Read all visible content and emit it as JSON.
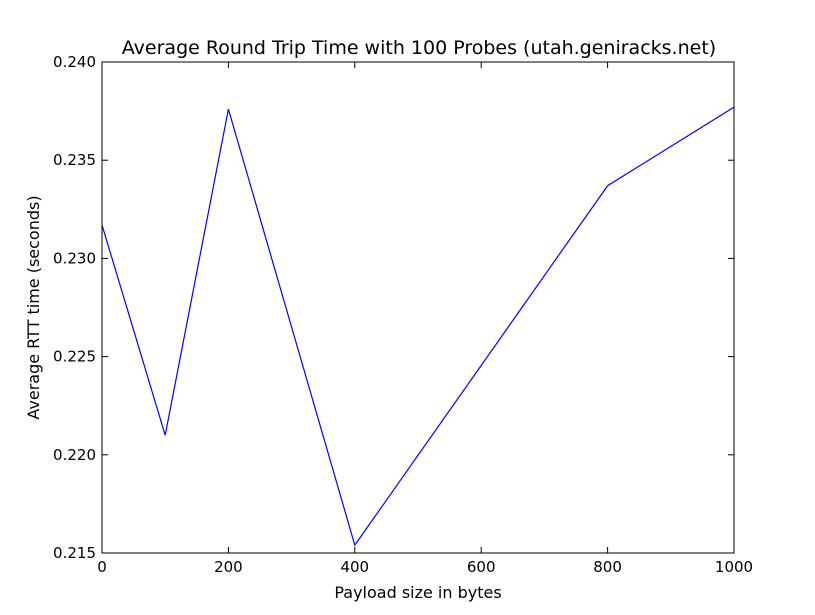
{
  "chart_data": {
    "type": "line",
    "title": "Average Round Trip Time with 100 Probes (utah.geniracks.net)",
    "xlabel": "Payload size in bytes",
    "ylabel": "Average RTT time (seconds)",
    "xlim": [
      0,
      1000
    ],
    "ylim": [
      0.215,
      0.24
    ],
    "xticks": [
      0,
      200,
      400,
      600,
      800,
      1000
    ],
    "xtick_labels": [
      "0",
      "200",
      "400",
      "600",
      "800",
      "1000"
    ],
    "yticks": [
      0.215,
      0.22,
      0.225,
      0.23,
      0.235,
      0.24
    ],
    "ytick_labels": [
      "0.215",
      "0.220",
      "0.225",
      "0.230",
      "0.235",
      "0.240"
    ],
    "grid": false,
    "series": [
      {
        "color": "#0000ff",
        "x": [
          0,
          100,
          200,
          400,
          800,
          1000
        ],
        "y": [
          0.2317,
          0.221,
          0.2376,
          0.2154,
          0.2337,
          0.2377
        ]
      }
    ]
  }
}
